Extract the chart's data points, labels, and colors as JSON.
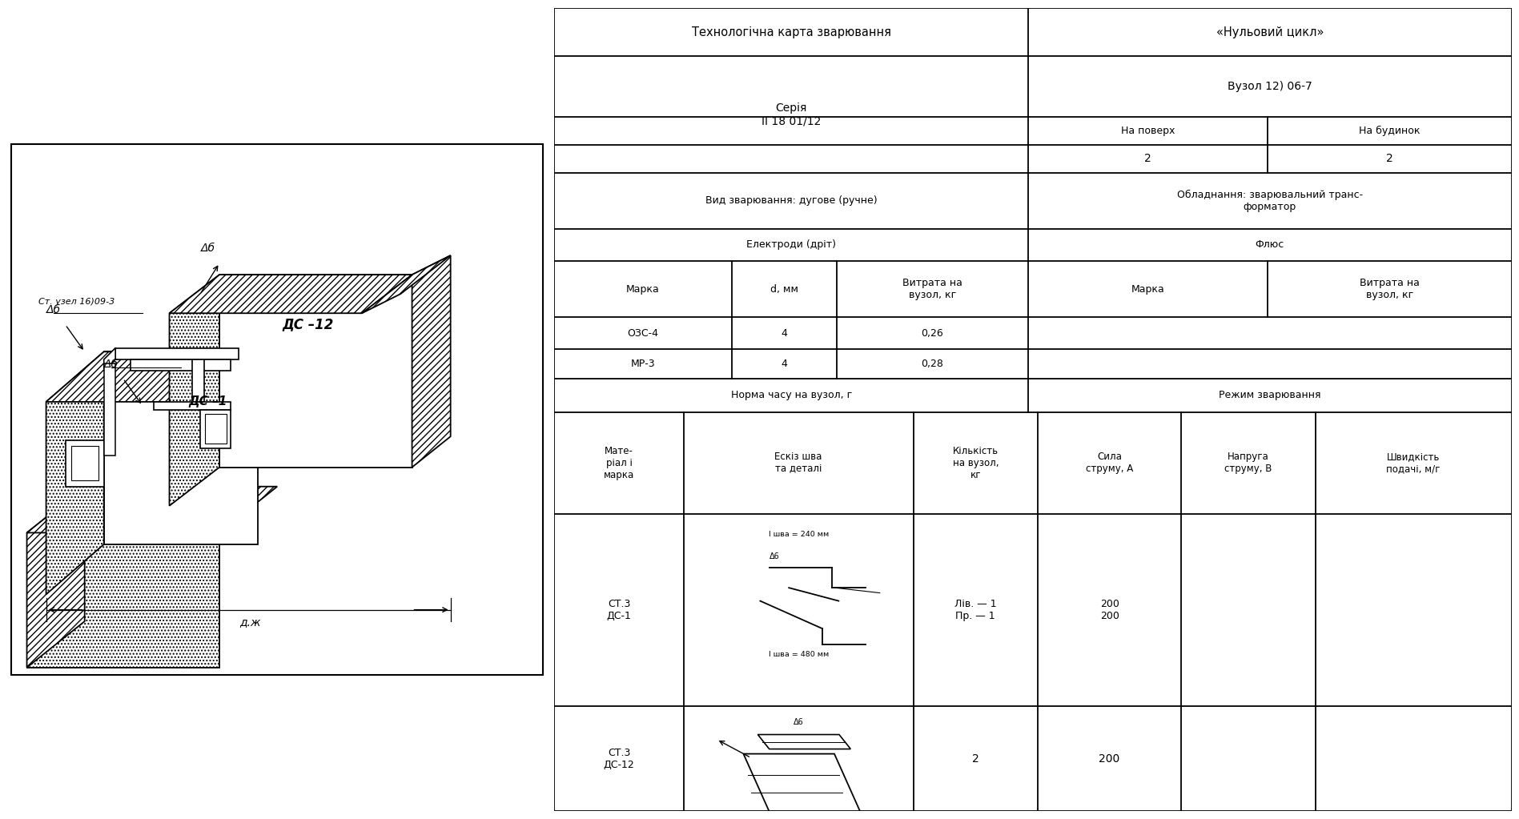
{
  "title_left": "Технологічна карта зварювання",
  "title_right": "«Нульовий цикл»",
  "seria_label": "Серія\nІІ 18 01/12",
  "vuzol_label": "Вузол 12) 06-7",
  "na_poverkh": "На поверх",
  "na_budynok": "На будинок",
  "na_poverkh_val": "2",
  "na_budynok_val": "2",
  "vyd_zvar": "Вид зварювання: дугове (ручне)",
  "obladnannia": "Обладнання: зварювальний транс-\nформатор",
  "elektr_label": "Електроди (дріт)",
  "flyus_label": "Флюс",
  "marka_col": "Марка",
  "d_col": "d, мм",
  "vytrata_col": "Витрата на\nвузол, кг",
  "marka_flyus_col": "Марка",
  "vytrata_flyus_col": "Витрата на\nвузол, кг",
  "electr_rows": [
    [
      "ОЗС-4",
      "4",
      "0,26"
    ],
    [
      "МР-3",
      "4",
      "0,28"
    ]
  ],
  "norma_label": "Норма часу на вузол, г",
  "rezhym_label": "Режим зварювання",
  "col_headers": [
    "Мате-\nріал і\nмарка",
    "Ескіз шва\nта деталі",
    "Кількість\nна вузол,\nкг",
    "Сила\nструму, А",
    "Напруга\nструму, В",
    "Швидкість\nподачі, м/г"
  ],
  "row1_mat": "СТ.3\nДС-1",
  "row1_kil": "Лів. — 1\nПр. — 1",
  "row1_syla": "200\n200",
  "row2_mat": "СТ.3\nДС-12",
  "row2_kil": "2",
  "row2_syla": "200",
  "sketch1_text1": "l шва = 240 мм",
  "sketch1_text2": "Δ6",
  "sketch1_text3": "l шва = 480 мм",
  "sketch2_text1": "Δ6",
  "bg_color": "#ffffff",
  "border_color": "#000000",
  "font_size": 10,
  "small_font": 9
}
